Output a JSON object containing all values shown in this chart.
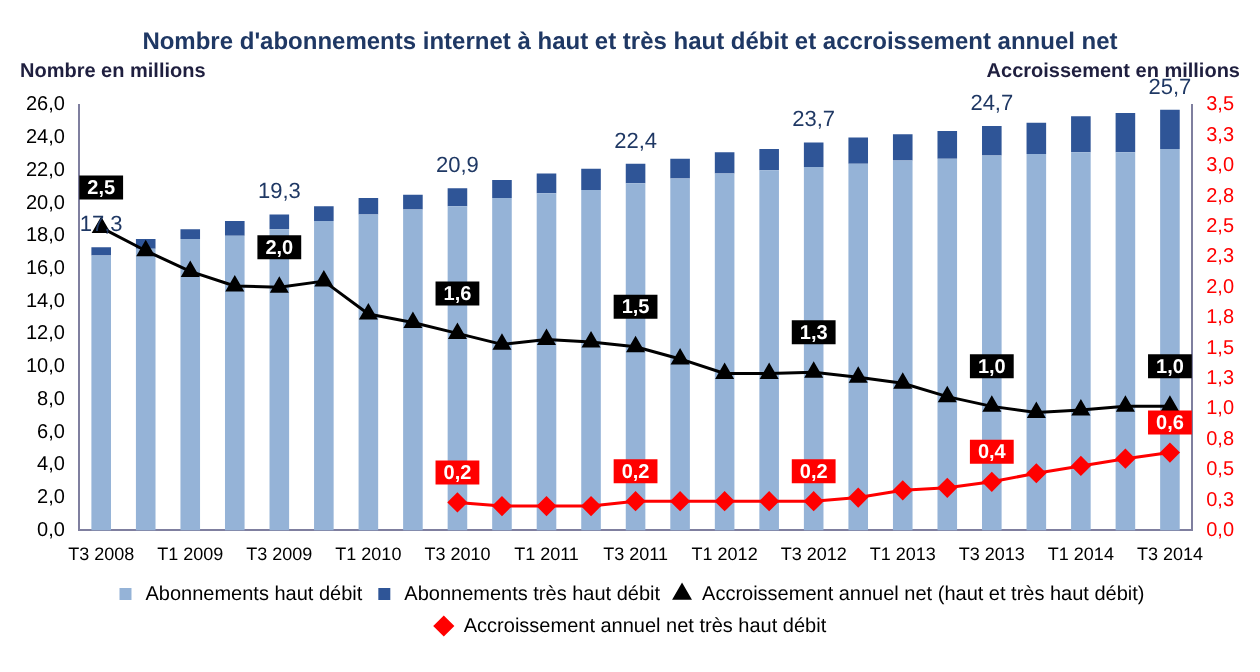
{
  "chart_data": {
    "type": "bar",
    "title": "Nombre d'abonnements internet à haut et très haut débit et accroissement annuel net",
    "ylabel": "Nombre en millions",
    "y2label": "Accroissement en millions",
    "categories": [
      "T3 2008",
      null,
      "T1 2009",
      null,
      "T3 2009",
      null,
      "T1 2010",
      null,
      "T3 2010",
      null,
      "T1 2011",
      null,
      "T3 2011",
      null,
      "T1 2012",
      null,
      "T3 2012",
      null,
      "T1 2013",
      null,
      "T3 2013",
      null,
      "T1 2014",
      null,
      "T3 2014"
    ],
    "stacked": true,
    "series": [
      {
        "name": "Abonnements haut débit",
        "color": "#95b3d7",
        "values": [
          16.8,
          17.2,
          17.8,
          18.0,
          18.4,
          18.9,
          19.3,
          19.6,
          19.8,
          20.3,
          20.6,
          20.8,
          21.2,
          21.5,
          21.8,
          22.0,
          22.2,
          22.4,
          22.6,
          22.7,
          22.9,
          23.0,
          23.1,
          23.1,
          23.3
        ]
      },
      {
        "name": "Abonnements très haut débit",
        "color": "#2f5597",
        "values": [
          0.5,
          0.6,
          0.6,
          0.9,
          0.9,
          0.9,
          1.0,
          0.9,
          1.1,
          1.1,
          1.2,
          1.3,
          1.2,
          1.2,
          1.3,
          1.3,
          1.5,
          1.6,
          1.6,
          1.7,
          1.8,
          1.9,
          2.2,
          2.4,
          2.4
        ]
      },
      {
        "name": "Accroissement annuel net (haut et très haut débit)",
        "type": "line",
        "axis": "y2",
        "marker": "triangle",
        "color": "#000000",
        "values": [
          2.49,
          2.3,
          2.13,
          2.01,
          2.0,
          2.05,
          1.78,
          1.71,
          1.62,
          1.53,
          1.57,
          1.55,
          1.51,
          1.41,
          1.29,
          1.29,
          1.3,
          1.26,
          1.21,
          1.1,
          1.02,
          0.97,
          0.99,
          1.02,
          1.02
        ],
        "value_labels": [
          "2,5",
          null,
          null,
          null,
          "2,0",
          null,
          null,
          null,
          "1,6",
          null,
          null,
          null,
          "1,5",
          null,
          null,
          null,
          "1,3",
          null,
          null,
          null,
          "1,0",
          null,
          null,
          null,
          "1,0"
        ]
      },
      {
        "name": "Accroissement annuel net très haut débit",
        "type": "line",
        "axis": "y2",
        "marker": "diamond",
        "color": "#ff0000",
        "values": [
          null,
          null,
          null,
          null,
          null,
          null,
          null,
          null,
          0.23,
          0.2,
          0.2,
          0.2,
          0.24,
          0.24,
          0.24,
          0.24,
          0.24,
          0.27,
          0.33,
          0.35,
          0.4,
          0.47,
          0.53,
          0.59,
          0.64
        ],
        "value_labels": [
          null,
          null,
          null,
          null,
          null,
          null,
          null,
          null,
          "0,2",
          null,
          null,
          null,
          "0,2",
          null,
          null,
          null,
          "0,2",
          null,
          null,
          null,
          "0,4",
          null,
          null,
          null,
          "0,6"
        ]
      }
    ],
    "totals": [
      "17,3",
      null,
      null,
      null,
      "19,3",
      null,
      null,
      null,
      "20,9",
      null,
      null,
      null,
      "22,4",
      null,
      null,
      null,
      "23,7",
      null,
      null,
      null,
      "24,7",
      null,
      null,
      null,
      "25,7"
    ],
    "ylim": [
      0,
      26
    ],
    "yticks": [
      {
        "value": 0,
        "label": "0,0"
      },
      {
        "value": 2,
        "label": "2,0"
      },
      {
        "value": 4,
        "label": "4,0"
      },
      {
        "value": 6,
        "label": "6,0"
      },
      {
        "value": 8,
        "label": "8,0"
      },
      {
        "value": 10,
        "label": "10,0"
      },
      {
        "value": 12,
        "label": "12,0"
      },
      {
        "value": 14,
        "label": "14,0"
      },
      {
        "value": 16,
        "label": "16,0"
      },
      {
        "value": 18,
        "label": "18,0"
      },
      {
        "value": 20,
        "label": "20,0"
      },
      {
        "value": 22,
        "label": "22,0"
      },
      {
        "value": 24,
        "label": "24,0"
      },
      {
        "value": 26,
        "label": "26,0"
      }
    ],
    "y2lim": [
      0,
      3.5
    ],
    "y2ticks": [
      {
        "value": 0,
        "label": "0,0"
      },
      {
        "value": 0.25,
        "label": "0,3"
      },
      {
        "value": 0.5,
        "label": "0,5"
      },
      {
        "value": 0.75,
        "label": "0,8"
      },
      {
        "value": 1,
        "label": "1,0"
      },
      {
        "value": 1.25,
        "label": "1,3"
      },
      {
        "value": 1.5,
        "label": "1,5"
      },
      {
        "value": 1.75,
        "label": "1,8"
      },
      {
        "value": 2,
        "label": "2,0"
      },
      {
        "value": 2.25,
        "label": "2,3"
      },
      {
        "value": 2.5,
        "label": "2,5"
      },
      {
        "value": 2.75,
        "label": "2,8"
      },
      {
        "value": 3,
        "label": "3,0"
      },
      {
        "value": 3.25,
        "label": "3,3"
      },
      {
        "value": 3.5,
        "label": "3,5"
      }
    ],
    "grid": false,
    "legend": "bottom"
  }
}
